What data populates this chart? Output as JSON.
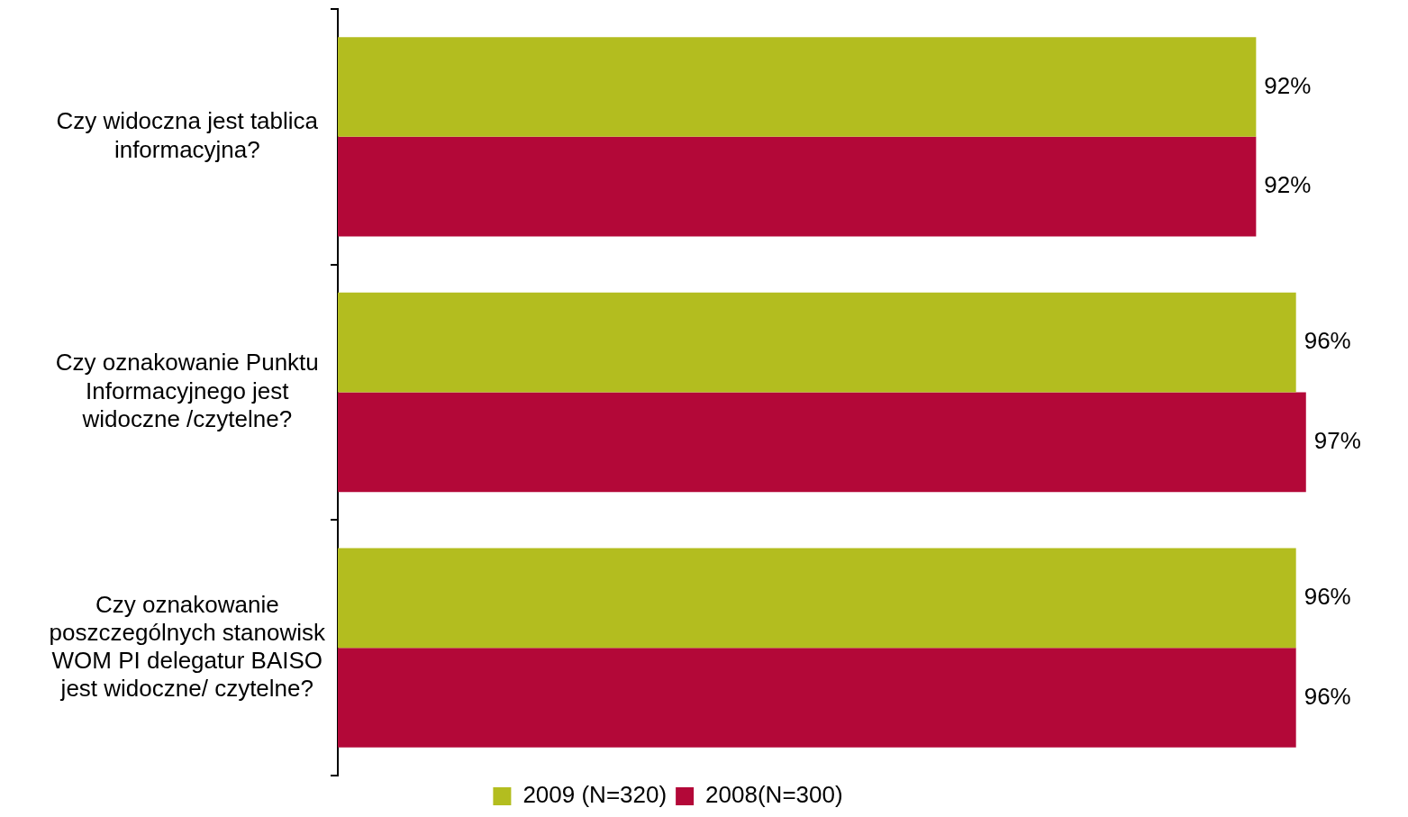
{
  "chart_data": {
    "type": "bar",
    "orientation": "horizontal",
    "categories": [
      "Czy widoczna jest tablica informacyjna?",
      "Czy oznakowanie Punktu Informacyjnego jest widoczne /czytelne?",
      "Czy oznakowanie poszczególnych stanowisk WOM PI delegatur BAISO jest widoczne/ czytelne?"
    ],
    "series": [
      {
        "name": "2009 (N=320)",
        "color": "#b3bd1f",
        "values": [
          92,
          96,
          96
        ],
        "value_labels": [
          "92%",
          "96%",
          "96%"
        ]
      },
      {
        "name": "2008(N=300)",
        "color": "#b30838",
        "values": [
          92,
          97,
          96
        ],
        "value_labels": [
          "92%",
          "97%",
          "96%"
        ]
      }
    ],
    "legend": "bottom"
  }
}
